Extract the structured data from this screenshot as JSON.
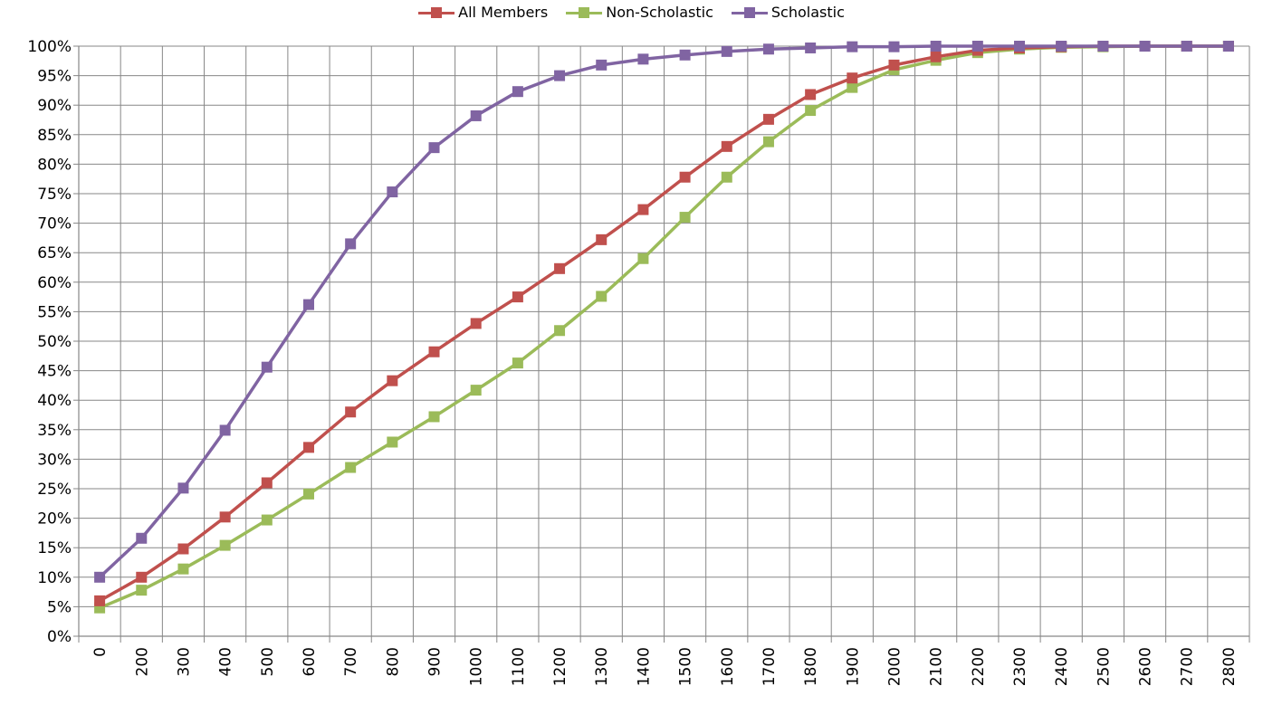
{
  "chart_data": {
    "type": "line",
    "title": "",
    "xlabel": "",
    "ylabel": "",
    "categories": [
      "0",
      "200",
      "300",
      "400",
      "500",
      "600",
      "700",
      "800",
      "900",
      "1000",
      "1100",
      "1200",
      "1300",
      "1400",
      "1500",
      "1600",
      "1700",
      "1800",
      "1900",
      "2000",
      "2100",
      "2200",
      "2300",
      "2400",
      "2500",
      "2600",
      "2700",
      "2800"
    ],
    "yticks": [
      "0%",
      "5%",
      "10%",
      "15%",
      "20%",
      "25%",
      "30%",
      "35%",
      "40%",
      "45%",
      "50%",
      "55%",
      "60%",
      "65%",
      "70%",
      "75%",
      "80%",
      "85%",
      "90%",
      "95%",
      "100%"
    ],
    "ylim": [
      0,
      100
    ],
    "grid": true,
    "legend_position": "top-center",
    "series": [
      {
        "name": "All Members",
        "color": "#c0504d",
        "values": [
          6,
          10,
          14.8,
          20.2,
          26,
          32,
          38,
          43.3,
          48.2,
          53,
          57.5,
          62.3,
          67.2,
          72.3,
          77.8,
          83,
          87.6,
          91.8,
          94.6,
          96.8,
          98.2,
          99.3,
          99.7,
          99.9,
          100,
          100,
          100,
          100
        ]
      },
      {
        "name": "Non-Scholastic",
        "color": "#9bbb59",
        "values": [
          4.8,
          7.8,
          11.4,
          15.4,
          19.7,
          24.1,
          28.6,
          32.9,
          37.2,
          41.7,
          46.3,
          51.8,
          57.6,
          64,
          71,
          77.8,
          83.8,
          89.1,
          93,
          96,
          97.6,
          98.9,
          99.5,
          99.8,
          99.9,
          100,
          100,
          100
        ]
      },
      {
        "name": "Scholastic",
        "color": "#8064a2",
        "values": [
          10,
          16.6,
          25.1,
          34.9,
          45.6,
          56.2,
          66.5,
          75.3,
          82.8,
          88.2,
          92.3,
          95,
          96.8,
          97.8,
          98.5,
          99.1,
          99.5,
          99.7,
          99.9,
          99.9,
          100,
          100,
          100,
          100,
          100,
          100,
          100,
          100
        ]
      }
    ]
  }
}
